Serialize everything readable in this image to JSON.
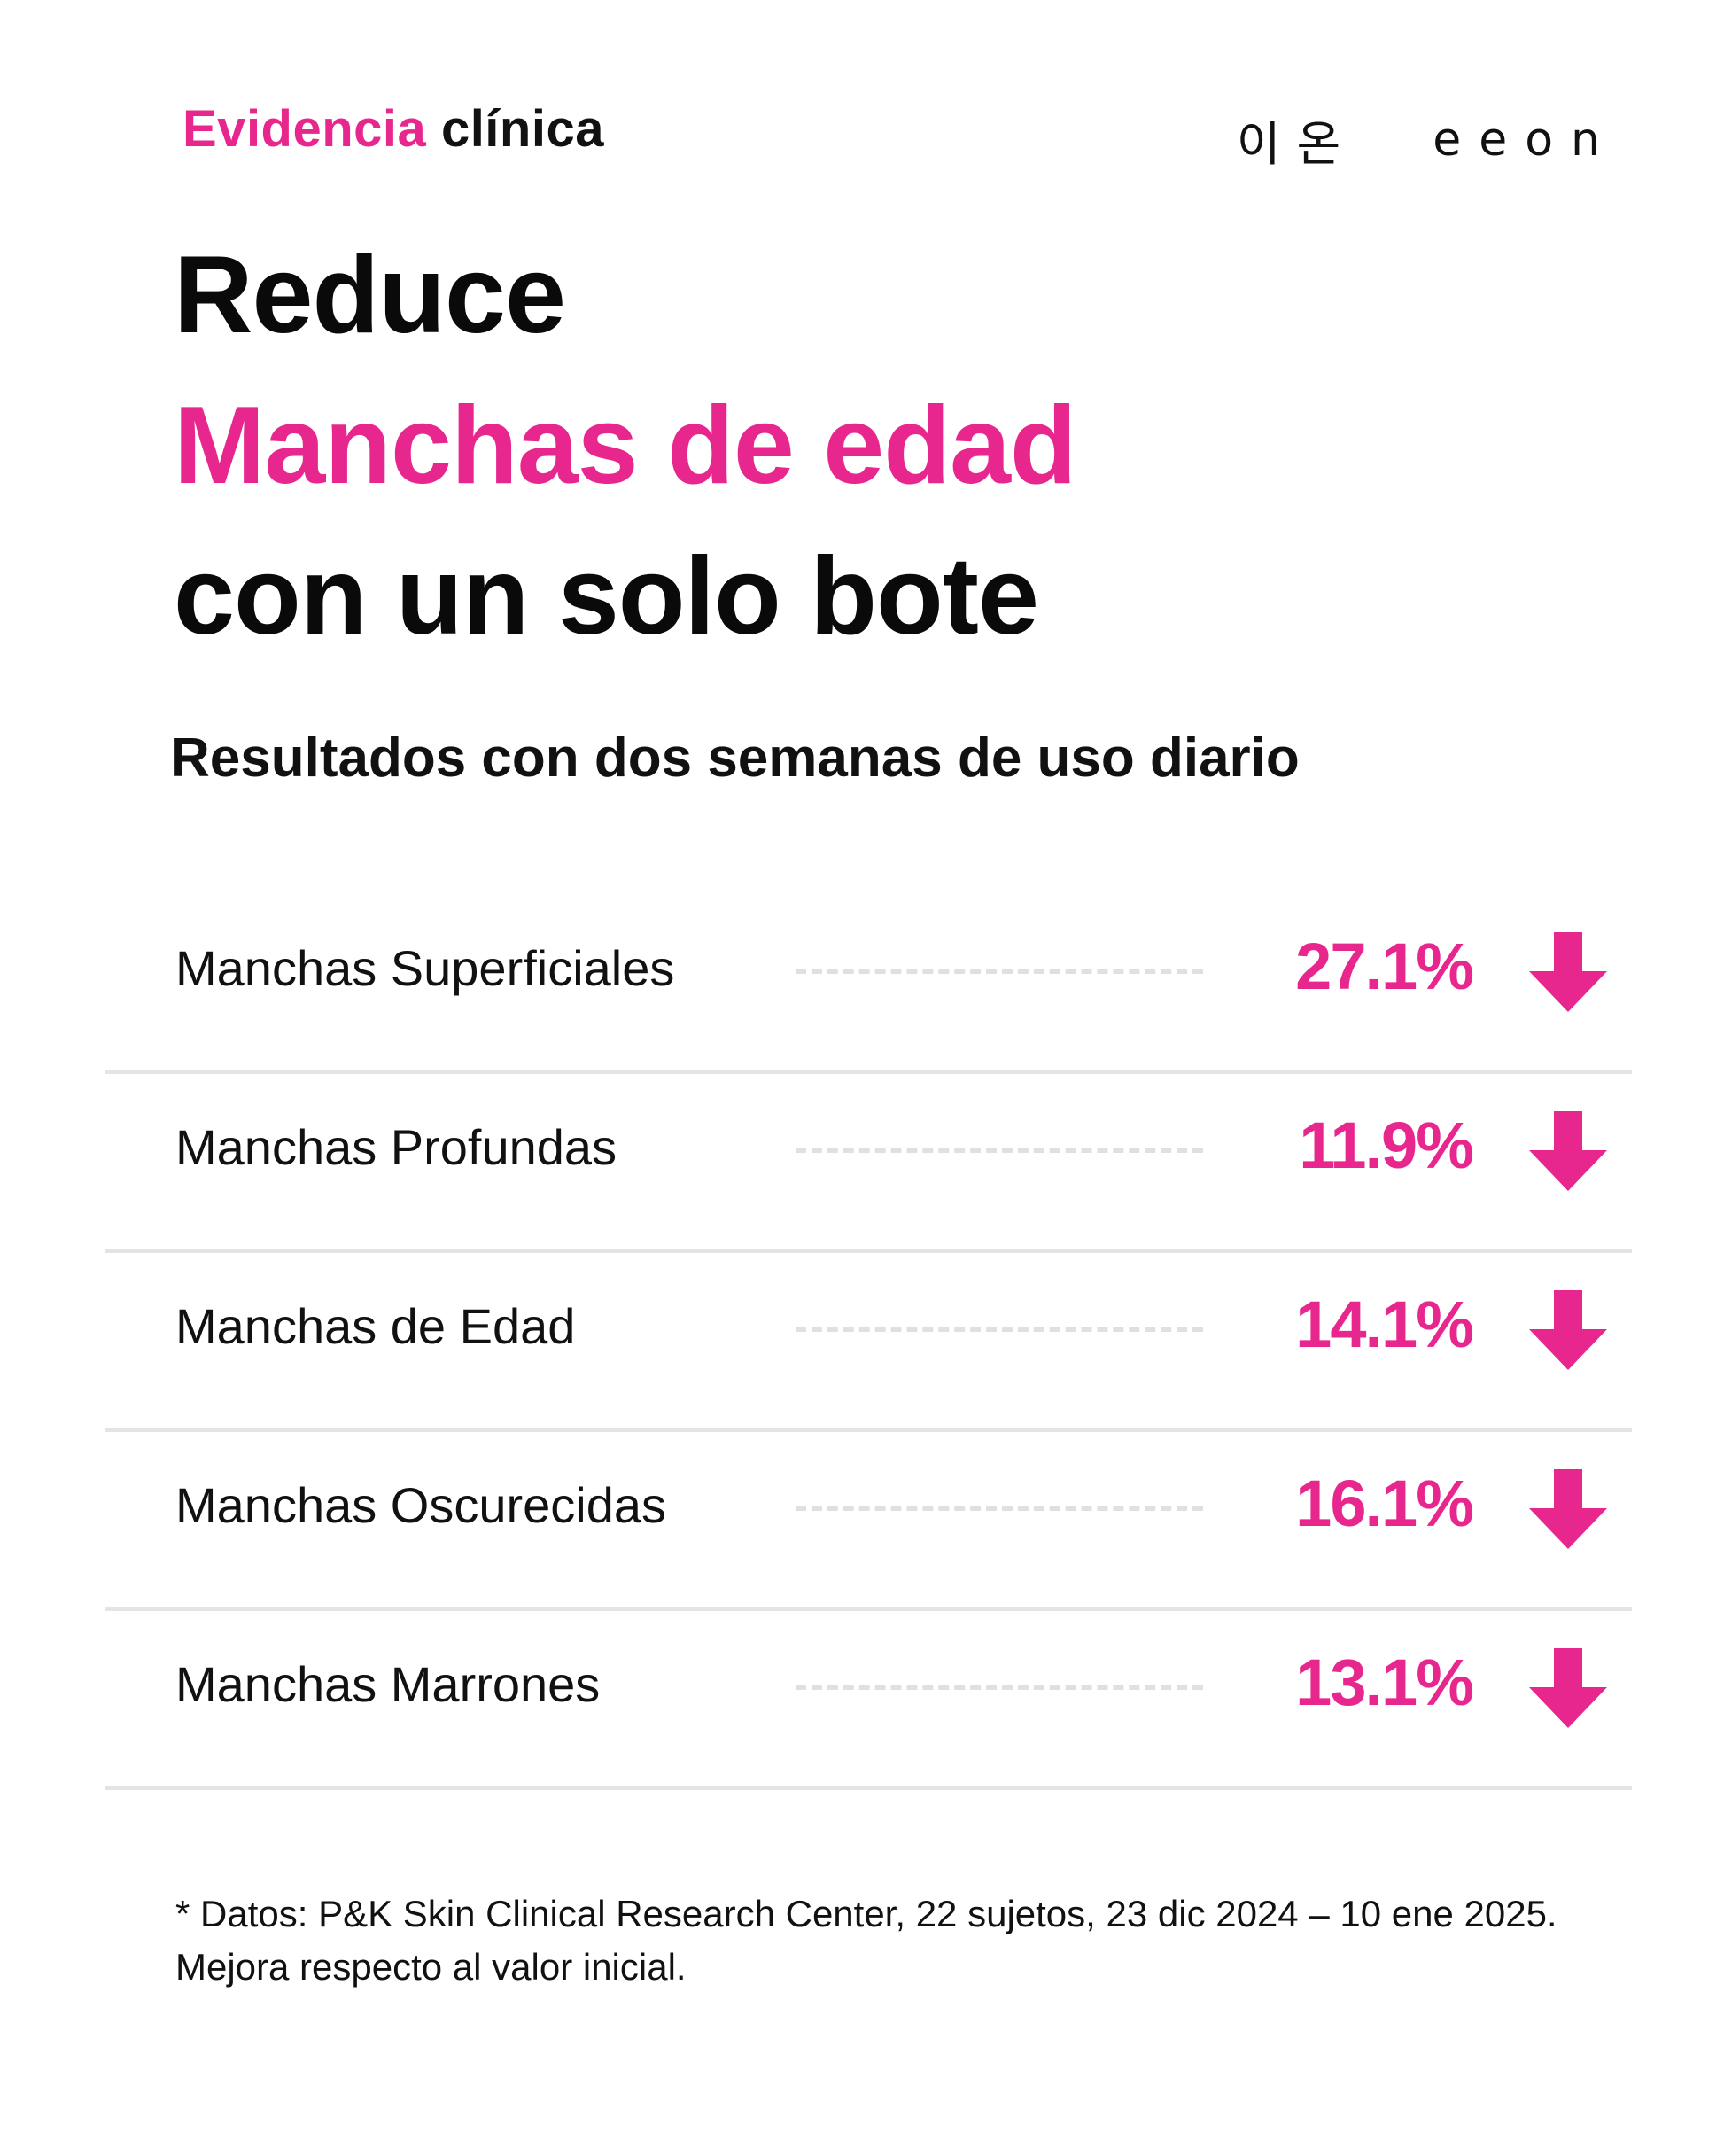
{
  "header": {
    "kicker_accent": "Evidencia",
    "kicker_rest": "clínica",
    "brand_korean": "이온",
    "brand_latin": "eeon"
  },
  "headline": {
    "line1": "Reduce",
    "line2": "Manchas de edad",
    "line3": "con un solo bote"
  },
  "subtitle": "Resultados con dos semanas de uso diario",
  "results": [
    {
      "label": "Manchas Superficiales",
      "value": "27.1%"
    },
    {
      "label": "Manchas Profundas",
      "value": "11.9%"
    },
    {
      "label": "Manchas de Edad",
      "value": "14.1%"
    },
    {
      "label": "Manchas Oscurecidas",
      "value": "16.1%"
    },
    {
      "label": "Manchas Marrones",
      "value": "13.1%"
    }
  ],
  "icons": {
    "arrow": "arrow-down-icon"
  },
  "colors": {
    "accent": "#e8278e",
    "text": "#111111",
    "divider": "#e4e4e4"
  },
  "footnote": {
    "line1": "* Datos: P&K Skin Clinical Research Center, 22 sujetos, 23 dic 2024 – 10 ene 2025.",
    "line2": "Mejora respecto al valor inicial."
  }
}
